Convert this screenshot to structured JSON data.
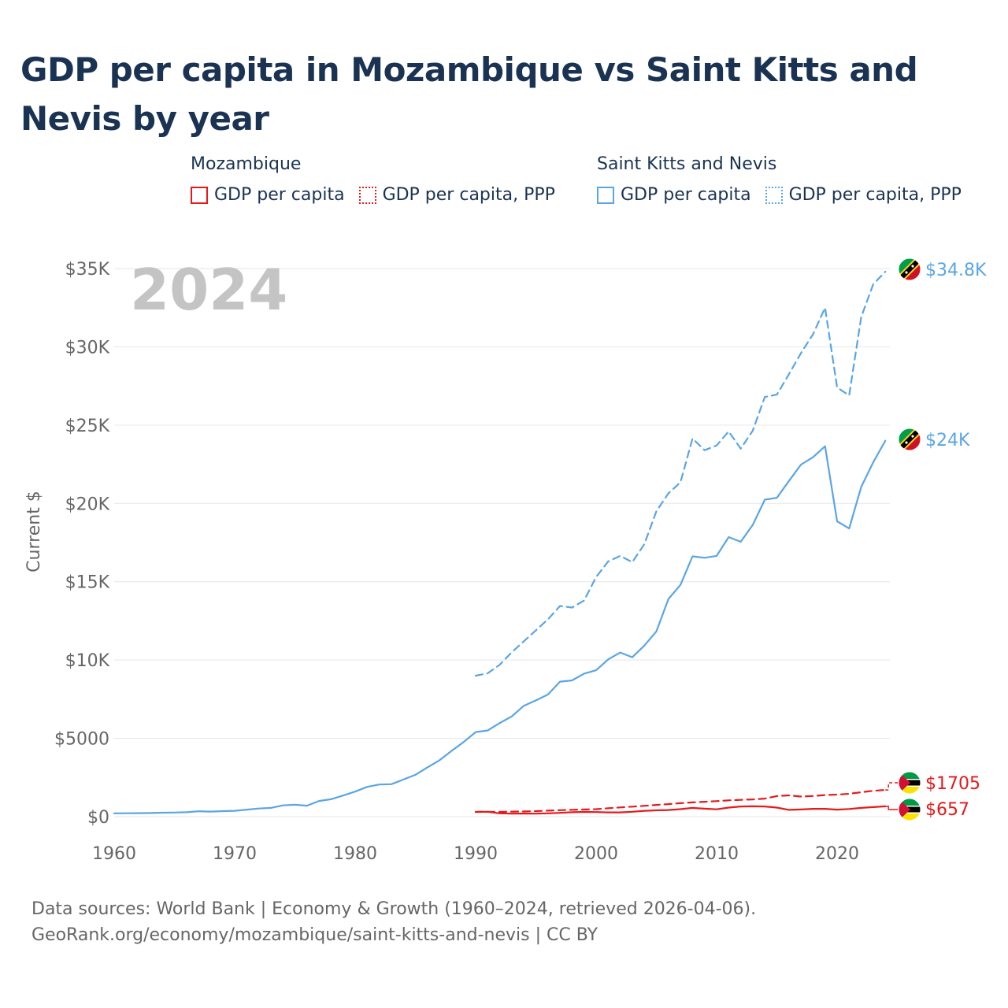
{
  "title": "GDP per capita in Mozambique vs Saint Kitts and Nevis by year",
  "legend": {
    "groups": [
      {
        "name": "Mozambique",
        "items": [
          "GDP per capita",
          "GDP per capita, PPP"
        ]
      },
      {
        "name": "Saint Kitts and Nevis",
        "items": [
          "GDP per capita",
          "GDP per capita, PPP"
        ]
      }
    ]
  },
  "colors": {
    "mozambique": "#e41a1c",
    "saint_kitts": "#5aa5e6",
    "grid": "#e6e6e6",
    "year": "#c4c4c4"
  },
  "chart_data": {
    "type": "line",
    "year_label": "2024",
    "ylabel": "Current $",
    "xlim": [
      1960,
      2025
    ],
    "ylim": [
      0,
      35000
    ],
    "x_ticks": [
      1960,
      1970,
      1980,
      1990,
      2000,
      2010,
      2020
    ],
    "x_tick_labels": [
      "1960",
      "1970",
      "1980",
      "1990",
      "2000",
      "2010",
      "2020"
    ],
    "y_ticks": [
      0,
      5000,
      10000,
      15000,
      20000,
      25000,
      30000,
      35000
    ],
    "y_tick_labels": [
      "$0",
      "$5000",
      "$10K",
      "$15K",
      "$20K",
      "$25K",
      "$30K",
      "$35K"
    ],
    "series": [
      {
        "name": "Saint Kitts and Nevis — GDP per capita, PPP",
        "color": "#5aa5e6",
        "dash": "dashed",
        "x": [
          1990,
          1991,
          1992,
          1993,
          1994,
          1995,
          1996,
          1997,
          1998,
          1999,
          2000,
          2001,
          2002,
          2003,
          2004,
          2005,
          2006,
          2007,
          2008,
          2009,
          2010,
          2011,
          2012,
          2013,
          2014,
          2015,
          2016,
          2017,
          2018,
          2019,
          2020,
          2021,
          2022,
          2023,
          2024
        ],
        "values": [
          9000,
          9150,
          9700,
          10500,
          11200,
          11900,
          12600,
          13450,
          13350,
          13800,
          15300,
          16300,
          16650,
          16250,
          17400,
          19500,
          20650,
          21350,
          24150,
          23400,
          23700,
          24600,
          23500,
          24650,
          26800,
          26950,
          28250,
          29600,
          30800,
          32500,
          27400,
          26900,
          31900,
          34000,
          34800
        ],
        "end_label": "$34.8K"
      },
      {
        "name": "Saint Kitts and Nevis — GDP per capita",
        "color": "#5aa5e6",
        "dash": "solid",
        "x": [
          1960,
          1961,
          1962,
          1963,
          1964,
          1965,
          1966,
          1967,
          1968,
          1969,
          1970,
          1971,
          1972,
          1973,
          1974,
          1975,
          1976,
          1977,
          1978,
          1979,
          1980,
          1981,
          1982,
          1983,
          1984,
          1985,
          1986,
          1987,
          1988,
          1989,
          1990,
          1991,
          1992,
          1993,
          1994,
          1995,
          1996,
          1997,
          1998,
          1999,
          2000,
          2001,
          2002,
          2003,
          2004,
          2005,
          2006,
          2007,
          2008,
          2009,
          2010,
          2011,
          2012,
          2013,
          2014,
          2015,
          2016,
          2017,
          2018,
          2019,
          2020,
          2021,
          2022,
          2023,
          2024
        ],
        "values": [
          210,
          215,
          220,
          230,
          250,
          260,
          280,
          340,
          320,
          350,
          370,
          450,
          520,
          560,
          720,
          760,
          700,
          1000,
          1110,
          1350,
          1600,
          1900,
          2050,
          2070,
          2370,
          2670,
          3150,
          3600,
          4200,
          4760,
          5400,
          5500,
          5980,
          6400,
          7080,
          7420,
          7800,
          8620,
          8700,
          9130,
          9350,
          10040,
          10480,
          10180,
          10920,
          11830,
          13900,
          14800,
          16620,
          16530,
          16650,
          17850,
          17550,
          18630,
          20240,
          20360,
          21430,
          22480,
          22950,
          23650,
          18860,
          18400,
          21050,
          22630,
          24000
        ],
        "end_label": "$24K"
      },
      {
        "name": "Mozambique — GDP per capita, PPP",
        "color": "#e41a1c",
        "dash": "dashed",
        "x": [
          1990,
          1991,
          1992,
          1993,
          1994,
          1995,
          1996,
          1997,
          1998,
          1999,
          2000,
          2001,
          2002,
          2003,
          2004,
          2005,
          2006,
          2007,
          2008,
          2009,
          2010,
          2011,
          2012,
          2013,
          2014,
          2015,
          2016,
          2017,
          2018,
          2019,
          2020,
          2021,
          2022,
          2023,
          2024
        ],
        "values": [
          300,
          310,
          300,
          320,
          330,
          350,
          380,
          410,
          440,
          460,
          480,
          540,
          590,
          640,
          690,
          750,
          800,
          860,
          910,
          950,
          990,
          1040,
          1070,
          1100,
          1150,
          1310,
          1360,
          1280,
          1320,
          1380,
          1410,
          1460,
          1560,
          1650,
          1705
        ],
        "end_label": "$1705"
      },
      {
        "name": "Mozambique — GDP per capita",
        "color": "#e41a1c",
        "dash": "solid",
        "x": [
          1990,
          1991,
          1992,
          1993,
          1994,
          1995,
          1996,
          1997,
          1998,
          1999,
          2000,
          2001,
          2002,
          2003,
          2004,
          2005,
          2006,
          2007,
          2008,
          2009,
          2010,
          2011,
          2012,
          2013,
          2014,
          2015,
          2016,
          2017,
          2018,
          2019,
          2020,
          2021,
          2022,
          2023,
          2024
        ],
        "values": [
          300,
          310,
          210,
          190,
          200,
          190,
          210,
          240,
          280,
          300,
          290,
          270,
          270,
          310,
          370,
          400,
          420,
          480,
          560,
          510,
          470,
          580,
          650,
          660,
          650,
          580,
          430,
          460,
          500,
          500,
          450,
          490,
          560,
          610,
          657
        ],
        "end_label": "$657"
      }
    ]
  },
  "source": {
    "line1": "Data sources: World Bank | Economy & Growth (1960–2024, retrieved 2026-04-06).",
    "line2": "GeoRank.org/economy/mozambique/saint-kitts-and-nevis | CC BY"
  }
}
